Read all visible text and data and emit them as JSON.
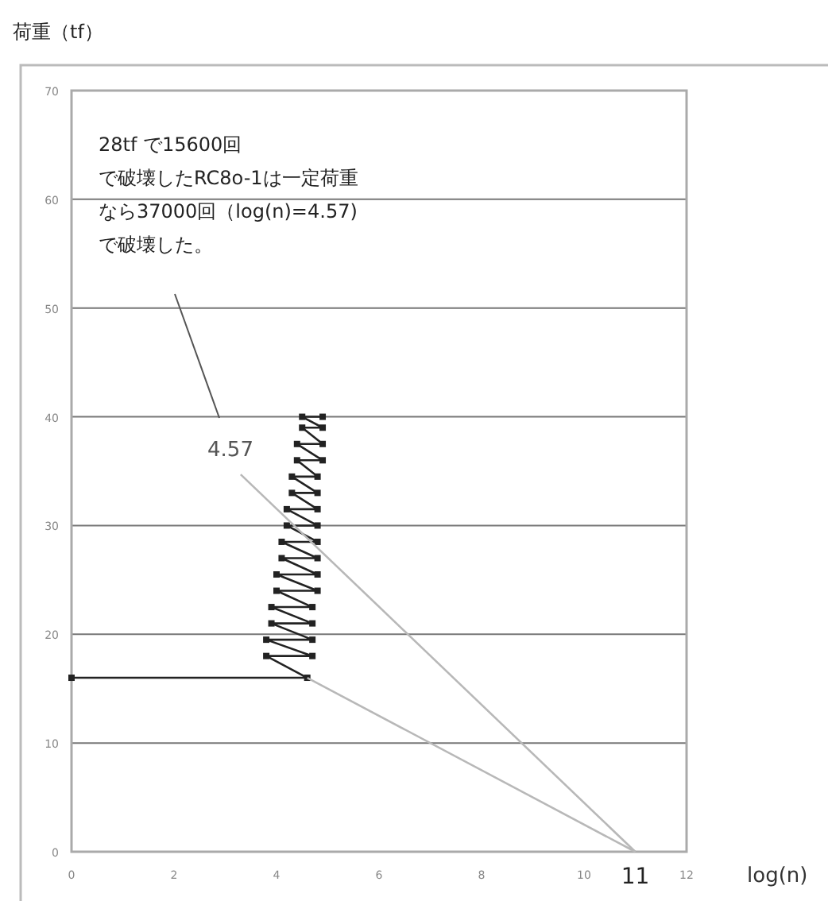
{
  "chart_data": {
    "type": "line",
    "ylabel": "荷重（tf）",
    "xlabel": "log(n)",
    "xlim": [
      0,
      12
    ],
    "ylim": [
      0,
      70
    ],
    "xticks": [
      0,
      2,
      4,
      6,
      8,
      10,
      12
    ],
    "yticks": [
      0,
      10,
      20,
      30,
      40,
      50,
      60,
      70
    ],
    "grid": "y",
    "series": [
      {
        "color": "#222222",
        "marker": "square",
        "x": [
          0,
          4.6,
          3.8,
          4.7,
          3.8,
          4.7,
          3.9,
          4.7,
          3.9,
          4.7,
          4.0,
          4.8,
          4.0,
          4.8,
          4.1,
          4.8,
          4.1,
          4.8,
          4.2,
          4.8,
          4.2,
          4.8,
          4.3,
          4.8,
          4.3,
          4.8,
          4.4,
          4.9,
          4.4,
          4.9,
          4.5,
          4.9,
          4.5,
          4.9
        ],
        "values": [
          16,
          16,
          18,
          18,
          19.5,
          19.5,
          21,
          21,
          22.5,
          22.5,
          24,
          24,
          25.5,
          25.5,
          27,
          27,
          28.5,
          28.5,
          30,
          30,
          31.5,
          31.5,
          33,
          33,
          34.5,
          34.5,
          36,
          36,
          37.5,
          37.5,
          39,
          39,
          40,
          40
        ]
      },
      {
        "color": "#b8b8b8",
        "marker": "none",
        "x": [
          4.6,
          11
        ],
        "values": [
          16,
          0
        ]
      },
      {
        "color": "#b8b8b8",
        "marker": "none",
        "x": [
          3.3,
          11
        ],
        "values": [
          34.7,
          0
        ]
      }
    ],
    "annotations": [
      "28tf で15600回",
      "で破壊したRC8o-1は一定荷重",
      "なら37000回（log(n)=4.57)",
      "で破壊した。",
      "4.57",
      {
        "text": "11",
        "x": 11,
        "y": 0
      }
    ]
  }
}
